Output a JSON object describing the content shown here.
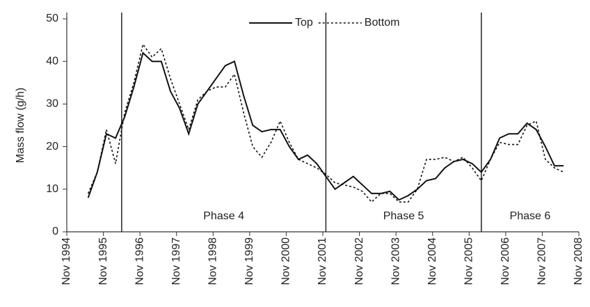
{
  "chart_data": {
    "type": "line",
    "y_label": "Mass flow (g/h)",
    "x": [
      "1995-06",
      "1995-09",
      "1995-12",
      "1996-03",
      "1996-06",
      "1996-09",
      "1996-12",
      "1997-03",
      "1997-06",
      "1997-09",
      "1997-12",
      "1998-03",
      "1998-06",
      "1998-09",
      "1998-12",
      "1999-03",
      "1999-06",
      "1999-09",
      "1999-12",
      "2000-03",
      "2000-06",
      "2000-09",
      "2000-12",
      "2001-03",
      "2001-06",
      "2001-09",
      "2001-12",
      "2002-03",
      "2002-06",
      "2002-09",
      "2002-12",
      "2003-03",
      "2003-06",
      "2003-09",
      "2003-12",
      "2004-03",
      "2004-06",
      "2004-09",
      "2004-12",
      "2005-03",
      "2005-06",
      "2005-09",
      "2005-12",
      "2006-03",
      "2006-06",
      "2006-09",
      "2006-12",
      "2007-03",
      "2007-06",
      "2007-09",
      "2007-12",
      "2008-03",
      "2008-06"
    ],
    "series": [
      {
        "name": "Top",
        "color": "#111111",
        "style": "solid",
        "values": [
          8,
          14,
          23,
          22,
          27,
          34,
          42,
          40,
          40,
          33,
          29,
          23,
          30,
          33,
          36,
          39,
          40,
          32,
          25,
          23.5,
          24,
          24,
          20,
          17,
          18,
          16,
          13,
          10,
          11.5,
          13,
          11,
          9,
          9,
          9.5,
          7.5,
          8.5,
          10,
          12,
          12.5,
          15,
          16.5,
          17,
          16,
          14,
          17,
          22,
          23,
          23,
          25.5,
          24,
          20,
          15.5,
          15.5
        ]
      },
      {
        "name": "Bottom",
        "color": "#111111",
        "style": "dashed",
        "values": [
          9,
          14,
          24,
          16,
          28,
          35,
          44,
          41,
          43,
          36,
          30,
          24,
          31,
          33,
          34,
          34,
          37,
          28,
          20,
          17.5,
          21,
          26,
          21,
          17,
          16,
          15,
          13.5,
          11.5,
          11,
          10.5,
          9.5,
          7,
          9,
          9,
          7,
          7,
          10,
          17,
          17,
          17.5,
          16.5,
          17.5,
          15,
          12,
          17,
          21,
          20.5,
          20.5,
          25,
          26,
          17,
          15,
          14
        ]
      }
    ],
    "phases": [
      {
        "label": "Phase 4",
        "start": "1996-05"
      },
      {
        "label": "Phase 5",
        "start": "2001-12"
      },
      {
        "label": "Phase 6",
        "start": "2006-03"
      }
    ],
    "xlim": [
      "1994-11",
      "2008-11"
    ],
    "xticks": [
      {
        "value": "1994-11",
        "label": "Nov 1994"
      },
      {
        "value": "1995-11",
        "label": "Nov 1995"
      },
      {
        "value": "1996-11",
        "label": "Nov 1996"
      },
      {
        "value": "1997-11",
        "label": "Nov 1997"
      },
      {
        "value": "1998-11",
        "label": "Nov 1998"
      },
      {
        "value": "1999-11",
        "label": "Nov 1999"
      },
      {
        "value": "2000-11",
        "label": "Nov 2000"
      },
      {
        "value": "2001-11",
        "label": "Nov 2001"
      },
      {
        "value": "2002-11",
        "label": "Nov 2002"
      },
      {
        "value": "2003-11",
        "label": "Nov 2003"
      },
      {
        "value": "2004-11",
        "label": "Nov 2004"
      },
      {
        "value": "2005-11",
        "label": "Nov 2005"
      },
      {
        "value": "2006-11",
        "label": "Nov 2006"
      },
      {
        "value": "2007-11",
        "label": "Nov 2007"
      },
      {
        "value": "2008-11",
        "label": "Nov 2008"
      }
    ],
    "ylim": [
      0,
      50
    ],
    "yticks": [
      0,
      10,
      20,
      30,
      40,
      50
    ],
    "legend": "top"
  }
}
